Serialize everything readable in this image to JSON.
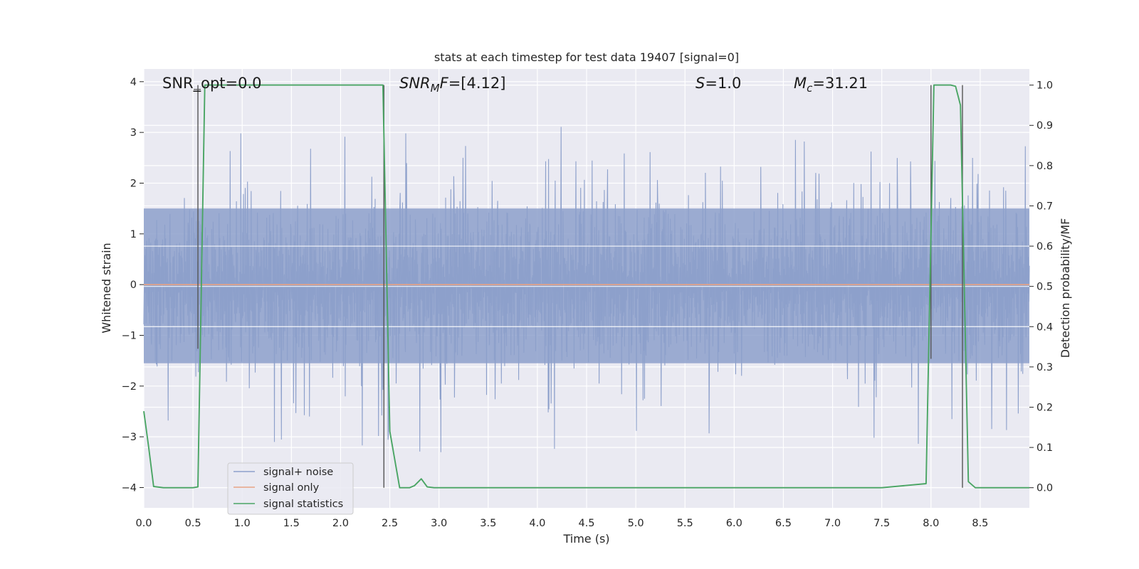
{
  "chart_data": {
    "type": "line",
    "title": "stats at each timestep for test data 19407 [signal=0]",
    "xlabel": "Time (s)",
    "ylabel": "Whitened strain",
    "y2label": "Detection probability/MF",
    "xlim": [
      0.0,
      9.0
    ],
    "ylim": [
      -4.4,
      4.25
    ],
    "y2lim": [
      -0.05,
      1.04
    ],
    "xticks": [
      "0.0",
      "0.5",
      "1.0",
      "1.5",
      "2.0",
      "2.5",
      "3.0",
      "3.5",
      "4.0",
      "4.5",
      "5.0",
      "5.5",
      "6.0",
      "6.5",
      "7.0",
      "7.5",
      "8.0",
      "8.5"
    ],
    "yticks": [
      "4",
      "3",
      "2",
      "1",
      "0",
      "−1",
      "−2",
      "−3",
      "−4"
    ],
    "y2ticks": [
      "1.0",
      "0.9",
      "0.8",
      "0.7",
      "0.6",
      "0.5",
      "0.4",
      "0.3",
      "0.2",
      "0.1",
      "0.0"
    ],
    "grid": true,
    "legend_position": "lower-left",
    "annotations": {
      "snr_opt": "SNR_opt=0.0",
      "snr_mf_italic": "SNR",
      "snr_mf_sub": "M",
      "snr_mf_italic2": "F",
      "snr_mf_value": "=[4.12]",
      "s_italic": "S",
      "s_value": "=1.0",
      "mc_italic": "M",
      "mc_sub": "c",
      "mc_value": "=31.21"
    },
    "series": [
      {
        "name": "signal+ noise",
        "color": "#8da0cb",
        "kind": "noise",
        "band": [
          -1.55,
          1.5
        ],
        "spike_max": [
          -3.9,
          3.9
        ]
      },
      {
        "name": "signal only",
        "color": "#e8a385",
        "kind": "constant",
        "y": 0.0
      },
      {
        "name": "signal statistics",
        "color": "#4aa564",
        "axis": "right",
        "x": [
          0.0,
          0.05,
          0.1,
          0.2,
          0.3,
          0.4,
          0.5,
          0.55,
          0.62,
          0.7,
          1.0,
          1.5,
          2.0,
          2.3,
          2.43,
          2.5,
          2.6,
          2.7,
          2.75,
          2.82,
          2.88,
          2.95,
          3.2,
          4.0,
          5.0,
          6.0,
          7.0,
          7.5,
          7.95,
          8.03,
          8.1,
          8.2,
          8.25,
          8.3,
          8.38,
          8.45,
          8.6,
          9.0
        ],
        "y": [
          0.19,
          0.1,
          0.003,
          0.0,
          0.0,
          0.0,
          0.0,
          0.002,
          1.0,
          1.0,
          1.0,
          1.0,
          1.0,
          1.0,
          1.0,
          0.14,
          0.0,
          0.0,
          0.005,
          0.022,
          0.002,
          0.0,
          0.0,
          0.0,
          0.0,
          0.0,
          0.0,
          0.0,
          0.01,
          1.0,
          1.0,
          1.0,
          0.997,
          0.95,
          0.015,
          0.0,
          0.0,
          0.0
        ]
      }
    ],
    "vlines": [
      {
        "x": 0.55,
        "y_from": 1.0,
        "y_to": 0.345
      },
      {
        "x": 2.44,
        "y_from": 1.0,
        "y_to": 0.0
      },
      {
        "x": 8.0,
        "y_from": 1.0,
        "y_to": 0.32
      },
      {
        "x": 8.32,
        "y_from": 1.0,
        "y_to": 0.0
      }
    ]
  }
}
